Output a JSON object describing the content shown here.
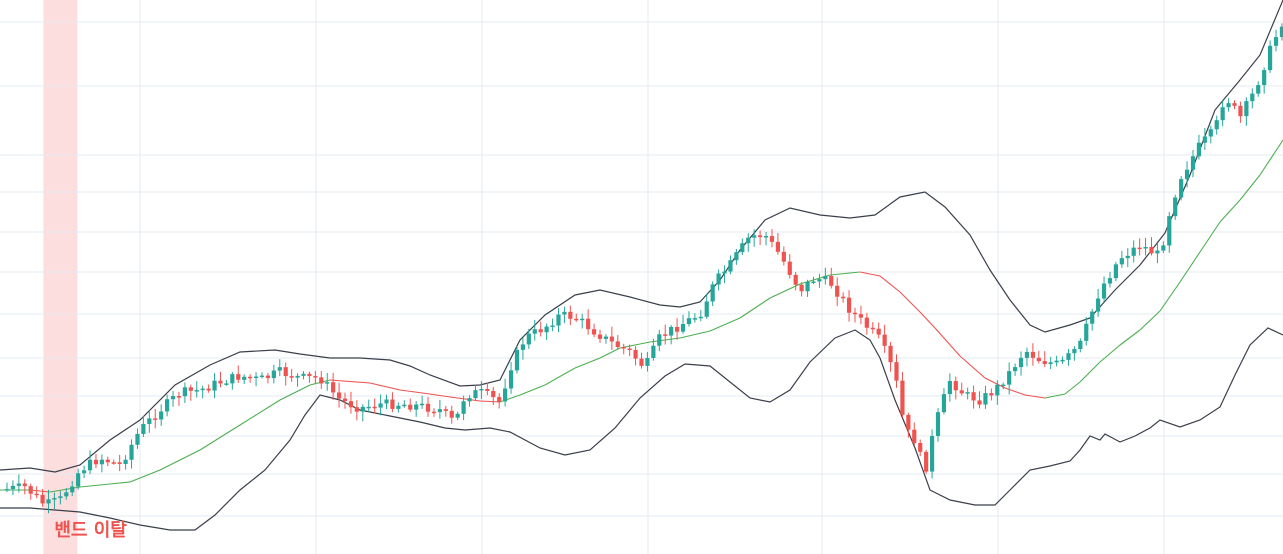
{
  "chart_data": {
    "type": "candlestick",
    "title": "",
    "xlabel": "",
    "ylabel": "",
    "grid": true,
    "colors": {
      "up": "#26a69a",
      "down": "#ef5350",
      "middle_band_up": "#4caf50",
      "middle_band_down": "#ef5350",
      "bands": "#3a3f4b",
      "highlight": "#fcdede",
      "annotation": "#ef5350"
    },
    "annotations": [
      {
        "label": "밴드 이탈",
        "candle_index": 9
      },
      {
        "label": "밴드 이탈",
        "candle_index": 230
      }
    ],
    "upper_band": [
      [
        0,
        470
      ],
      [
        30,
        468
      ],
      [
        55,
        472
      ],
      [
        80,
        465
      ],
      [
        110,
        440
      ],
      [
        140,
        420
      ],
      [
        175,
        385
      ],
      [
        210,
        365
      ],
      [
        240,
        352
      ],
      [
        275,
        350
      ],
      [
        300,
        354
      ],
      [
        330,
        358
      ],
      [
        360,
        358
      ],
      [
        390,
        360
      ],
      [
        410,
        366
      ],
      [
        430,
        375
      ],
      [
        460,
        386
      ],
      [
        480,
        385
      ],
      [
        500,
        380
      ],
      [
        520,
        340
      ],
      [
        545,
        315
      ],
      [
        575,
        295
      ],
      [
        600,
        290
      ],
      [
        630,
        297
      ],
      [
        660,
        305
      ],
      [
        680,
        307
      ],
      [
        700,
        302
      ],
      [
        720,
        280
      ],
      [
        740,
        250
      ],
      [
        765,
        220
      ],
      [
        790,
        208
      ],
      [
        820,
        215
      ],
      [
        850,
        218
      ],
      [
        875,
        215
      ],
      [
        900,
        197
      ],
      [
        925,
        192
      ],
      [
        945,
        207
      ],
      [
        970,
        235
      ],
      [
        990,
        270
      ],
      [
        1010,
        300
      ],
      [
        1030,
        325
      ],
      [
        1045,
        332
      ],
      [
        1070,
        325
      ],
      [
        1090,
        318
      ],
      [
        1115,
        290
      ],
      [
        1140,
        265
      ],
      [
        1165,
        233
      ],
      [
        1190,
        175
      ],
      [
        1215,
        110
      ],
      [
        1240,
        80
      ],
      [
        1260,
        55
      ],
      [
        1283,
        0
      ]
    ],
    "lower_band": [
      [
        0,
        508
      ],
      [
        30,
        508
      ],
      [
        55,
        510
      ],
      [
        80,
        512
      ],
      [
        110,
        518
      ],
      [
        140,
        525
      ],
      [
        170,
        530
      ],
      [
        195,
        530
      ],
      [
        215,
        515
      ],
      [
        240,
        490
      ],
      [
        265,
        470
      ],
      [
        290,
        440
      ],
      [
        305,
        415
      ],
      [
        320,
        395
      ],
      [
        340,
        400
      ],
      [
        360,
        410
      ],
      [
        390,
        416
      ],
      [
        420,
        422
      ],
      [
        445,
        428
      ],
      [
        465,
        430
      ],
      [
        490,
        428
      ],
      [
        510,
        432
      ],
      [
        540,
        448
      ],
      [
        565,
        455
      ],
      [
        590,
        450
      ],
      [
        615,
        428
      ],
      [
        640,
        398
      ],
      [
        665,
        376
      ],
      [
        685,
        364
      ],
      [
        710,
        366
      ],
      [
        730,
        382
      ],
      [
        750,
        398
      ],
      [
        770,
        402
      ],
      [
        790,
        390
      ],
      [
        810,
        362
      ],
      [
        835,
        338
      ],
      [
        855,
        330
      ],
      [
        870,
        340
      ],
      [
        880,
        358
      ],
      [
        895,
        400
      ],
      [
        915,
        448
      ],
      [
        930,
        490
      ],
      [
        950,
        500
      ],
      [
        975,
        505
      ],
      [
        995,
        505
      ],
      [
        1010,
        490
      ],
      [
        1030,
        470
      ],
      [
        1050,
        466
      ],
      [
        1070,
        461
      ],
      [
        1080,
        450
      ],
      [
        1090,
        436
      ],
      [
        1100,
        440
      ],
      [
        1105,
        434
      ],
      [
        1120,
        442
      ],
      [
        1135,
        436
      ],
      [
        1150,
        428
      ],
      [
        1160,
        420
      ],
      [
        1180,
        427
      ],
      [
        1200,
        420
      ],
      [
        1220,
        407
      ],
      [
        1235,
        375
      ],
      [
        1250,
        345
      ],
      [
        1268,
        328
      ],
      [
        1283,
        335
      ]
    ],
    "middle_band": [
      [
        0,
        490
      ],
      [
        30,
        490
      ],
      [
        50,
        492
      ],
      [
        80,
        487
      ],
      [
        110,
        484
      ],
      [
        130,
        482
      ],
      [
        160,
        470
      ],
      [
        200,
        450
      ],
      [
        240,
        425
      ],
      [
        280,
        400
      ],
      [
        310,
        385
      ],
      [
        330,
        380
      ],
      [
        370,
        383
      ],
      [
        400,
        390
      ],
      [
        430,
        394
      ],
      [
        450,
        397
      ],
      [
        480,
        401
      ],
      [
        500,
        402
      ],
      [
        520,
        395
      ],
      [
        545,
        385
      ],
      [
        575,
        368
      ],
      [
        600,
        358
      ],
      [
        620,
        348
      ],
      [
        650,
        342
      ],
      [
        680,
        338
      ],
      [
        710,
        331
      ],
      [
        740,
        318
      ],
      [
        770,
        298
      ],
      [
        800,
        284
      ],
      [
        830,
        275
      ],
      [
        860,
        272
      ],
      [
        880,
        276
      ],
      [
        900,
        292
      ],
      [
        920,
        312
      ],
      [
        935,
        328
      ],
      [
        960,
        356
      ],
      [
        985,
        378
      ],
      [
        1005,
        388
      ],
      [
        1025,
        395
      ],
      [
        1045,
        398
      ],
      [
        1065,
        394
      ],
      [
        1080,
        382
      ],
      [
        1100,
        362
      ],
      [
        1120,
        345
      ],
      [
        1140,
        330
      ],
      [
        1160,
        311
      ],
      [
        1180,
        282
      ],
      [
        1200,
        252
      ],
      [
        1220,
        222
      ],
      [
        1240,
        200
      ],
      [
        1260,
        175
      ],
      [
        1283,
        140
      ]
    ],
    "candles": [
      [
        0,
        12,
        2.6,
        3.4,
        4.4,
        2.1,
        0
      ],
      [
        1,
        10,
        3.1,
        3.6,
        4.1,
        1.1,
        0
      ],
      [
        2,
        7,
        3.4,
        3.0,
        2.2,
        2.7,
        0
      ],
      [
        3,
        6,
        3.0,
        2.7,
        3.1,
        1.8,
        0
      ],
      [
        4,
        5,
        2.8,
        2.5,
        3.5,
        1.6,
        0
      ],
      [
        5,
        8,
        2.4,
        2.2,
        3.3,
        1.5,
        0
      ],
      [
        6,
        4,
        2.3,
        1.3,
        2.5,
        1.0,
        0
      ],
      [
        7,
        -3,
        1.3,
        0.6,
        0.5,
        -0.5,
        0
      ],
      [
        8,
        8,
        0.6,
        0.9,
        1.0,
        0.5,
        0
      ],
      [
        9,
        15,
        0.9,
        2.0,
        2.5,
        0.6,
        1
      ],
      [
        10,
        13,
        2.0,
        2.6,
        2.9,
        1.7,
        1
      ],
      [
        11,
        16,
        2.6,
        3.9,
        4.4,
        2.2,
        1
      ],
      [
        12,
        8,
        3.9,
        5.7,
        6.0,
        3.4,
        1
      ]
    ]
  }
}
